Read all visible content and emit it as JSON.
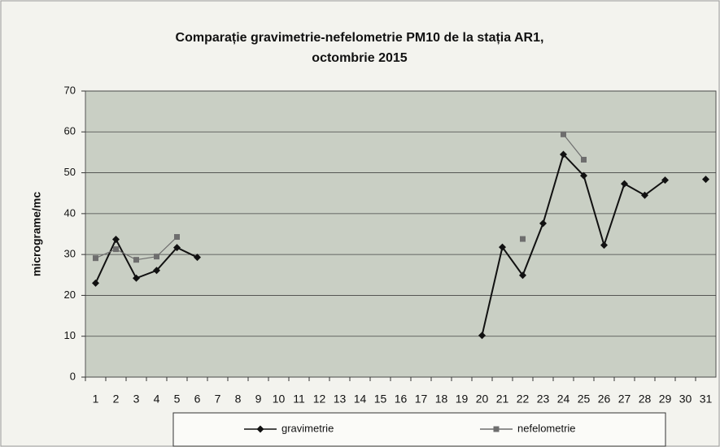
{
  "chart_data": {
    "type": "line",
    "title": [
      "Comparație gravimetrie-nefelometrie PM10 de la stația AR1,",
      "octombrie 2015"
    ],
    "y_label": "micrograme/mc",
    "categories": [
      "1",
      "2",
      "3",
      "4",
      "5",
      "6",
      "7",
      "8",
      "9",
      "10",
      "11",
      "12",
      "13",
      "14",
      "15",
      "16",
      "17",
      "18",
      "19",
      "20",
      "21",
      "22",
      "23",
      "24",
      "25",
      "26",
      "27",
      "28",
      "29",
      "30",
      "31"
    ],
    "series": [
      {
        "name": "gravimetrie",
        "color": "#111111",
        "marker": "diamond",
        "values": [
          23,
          33.7,
          24.2,
          26.1,
          31.7,
          29.3,
          null,
          null,
          null,
          null,
          null,
          null,
          null,
          null,
          null,
          null,
          null,
          null,
          null,
          10.2,
          31.8,
          24.9,
          37.6,
          54.5,
          49.3,
          32.3,
          47.3,
          44.5,
          48.2,
          null,
          48.4
        ]
      },
      {
        "name": "nefelometrie",
        "color": "#6e6e6e",
        "marker": "square",
        "values": [
          29.1,
          31.3,
          28.7,
          29.5,
          34.3,
          null,
          null,
          null,
          null,
          null,
          null,
          null,
          null,
          null,
          null,
          null,
          null,
          null,
          null,
          null,
          null,
          33.8,
          null,
          59.4,
          53.2,
          null,
          null,
          null,
          null,
          null,
          null
        ]
      }
    ],
    "ylim": [
      0,
      70
    ],
    "yticks": [
      0,
      10,
      20,
      30,
      40,
      50,
      60,
      70
    ],
    "grid": true,
    "legend": "bottom"
  }
}
